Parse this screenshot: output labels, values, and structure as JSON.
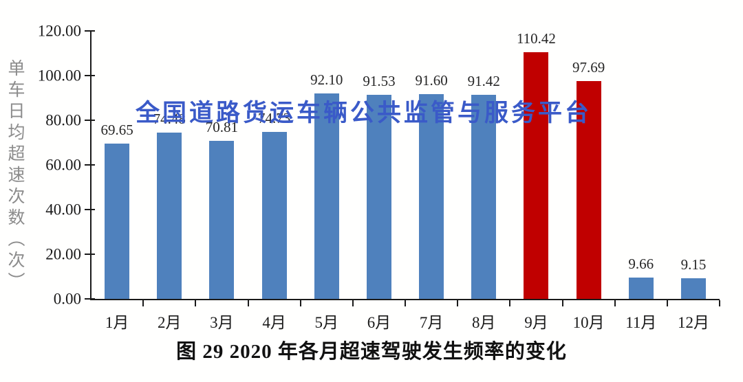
{
  "watermark": "全国道路货运车辆公共监管与服务平台",
  "title": "图 29 2020 年各月超速驾驶发生频率的变化",
  "y_axis_title": "单车日均超速次数（次）",
  "colors": {
    "bar_blue": "#4F81BD",
    "bar_red": "#C00000",
    "watermark_blue": "#3A5AC8",
    "axis": "#1A1A1A",
    "y_axis_title_gray": "#8C8C8C"
  },
  "chart_data": {
    "type": "bar",
    "title": "图 29 2020 年各月超速驾驶发生频率的变化",
    "xlabel": "",
    "ylabel": "单车日均超速次数（次）",
    "ylim": [
      0,
      120
    ],
    "ytick_step": 20,
    "yticks": [
      "0.00",
      "20.00",
      "40.00",
      "60.00",
      "80.00",
      "100.00",
      "120.00"
    ],
    "grid": false,
    "legend": false,
    "categories": [
      "1月",
      "2月",
      "3月",
      "4月",
      "5月",
      "6月",
      "7月",
      "8月",
      "9月",
      "10月",
      "11月",
      "12月"
    ],
    "values": [
      69.65,
      74.48,
      70.81,
      74.73,
      92.1,
      91.53,
      91.6,
      91.42,
      110.42,
      97.69,
      9.66,
      9.15
    ],
    "labels": [
      "69.65",
      "74.48",
      "70.81",
      "74.73",
      "92.10",
      "91.53",
      "91.60",
      "91.42",
      "110.42",
      "97.69",
      "9.66",
      "9.15"
    ],
    "bar_colors": [
      "#4F81BD",
      "#4F81BD",
      "#4F81BD",
      "#4F81BD",
      "#4F81BD",
      "#4F81BD",
      "#4F81BD",
      "#4F81BD",
      "#C00000",
      "#C00000",
      "#4F81BD",
      "#4F81BD"
    ]
  }
}
